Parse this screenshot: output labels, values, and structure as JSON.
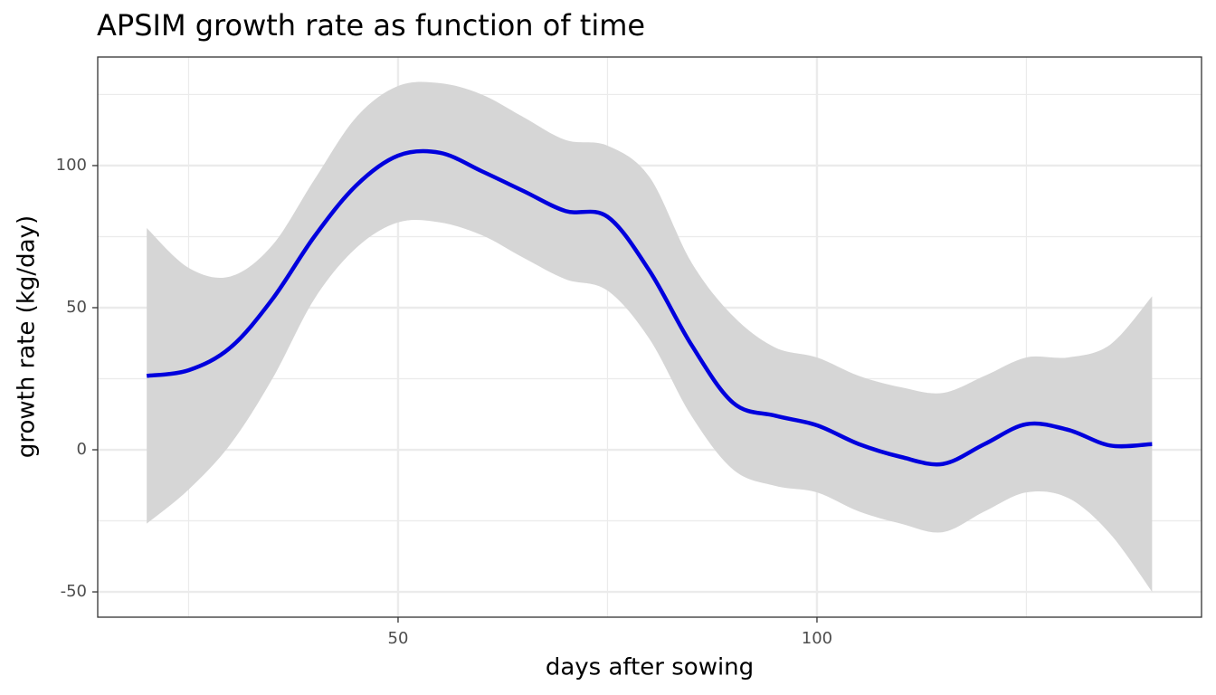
{
  "chart_data": {
    "type": "line",
    "title": "APSIM growth rate as function of time",
    "x_label": "days after sowing",
    "y_label": "growth rate (kg/day)",
    "x": [
      20,
      25,
      30,
      35,
      40,
      45,
      50,
      55,
      60,
      65,
      70,
      75,
      80,
      85,
      90,
      95,
      100,
      105,
      110,
      115,
      120,
      125,
      130,
      135,
      140
    ],
    "series": [
      {
        "color": "#0000dd",
        "values": [
          26,
          28,
          36,
          53,
          75,
          93,
          103.5,
          104.5,
          98,
          91,
          84,
          82,
          63,
          37,
          16.5,
          12,
          8.6,
          2,
          -2.5,
          -5,
          2,
          9,
          7,
          1.5,
          2
        ],
        "lower": [
          -26,
          -14,
          2,
          25,
          53,
          71,
          80,
          80,
          75.5,
          67.5,
          60,
          56,
          39,
          12,
          -7,
          -12.7,
          -15,
          -21.7,
          -26,
          -29,
          -21.7,
          -15,
          -17,
          -29.6,
          -50
        ],
        "upper": [
          78,
          64,
          61,
          72,
          95,
          117,
          128,
          129,
          125,
          117,
          109,
          107,
          96,
          66,
          47,
          36,
          32.5,
          26,
          22,
          20,
          26,
          32.5,
          32.5,
          37,
          54
        ],
        "band_color": "#d6d6d6"
      }
    ],
    "xlim": [
      14.15,
      145.9
    ],
    "ylim": [
      -58.9,
      138.2
    ],
    "xticks": [
      50,
      100
    ],
    "yticks": [
      -50,
      0,
      50,
      100
    ],
    "x_minor_grid": [
      25,
      75,
      125
    ],
    "y_minor_grid": [
      -25,
      25,
      75,
      125
    ],
    "grid": true
  }
}
